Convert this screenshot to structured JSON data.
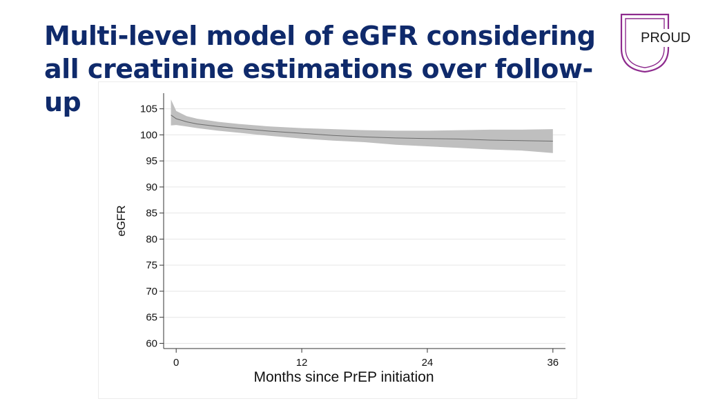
{
  "slide": {
    "title": "Multi-level model of eGFR considering all creatinine estimations over follow-up",
    "logo_text": "PROUD",
    "title_color": "#0f2a6b",
    "logo_color": "#8e2b8e"
  },
  "chart_data": {
    "type": "line",
    "title": "",
    "xlabel": "Months since PrEP initiation",
    "ylabel": "eGFR",
    "xlim": [
      -1.2,
      37.2
    ],
    "ylim": [
      59,
      108
    ],
    "xticks": [
      0,
      12,
      24,
      36
    ],
    "yticks": [
      60,
      65,
      70,
      75,
      80,
      85,
      90,
      95,
      100,
      105
    ],
    "grid": true,
    "series": [
      {
        "x": [
          -0.5,
          0,
          1,
          2,
          4,
          6,
          9,
          12,
          15,
          18,
          21,
          24,
          27,
          30,
          33,
          36
        ],
        "values": [
          103.8,
          103.1,
          102.5,
          102.1,
          101.6,
          101.2,
          100.7,
          100.3,
          99.9,
          99.6,
          99.4,
          99.3,
          99.2,
          99.0,
          98.9,
          98.8
        ],
        "ci_lower": [
          101.8,
          101.9,
          101.6,
          101.3,
          100.8,
          100.4,
          99.8,
          99.3,
          98.9,
          98.6,
          98.1,
          97.8,
          97.5,
          97.2,
          97.0,
          96.5
        ],
        "ci_upper": [
          106.8,
          104.6,
          103.6,
          103.1,
          102.5,
          102.1,
          101.6,
          101.3,
          101.1,
          100.9,
          100.8,
          100.8,
          100.9,
          101.0,
          101.0,
          101.1
        ]
      }
    ],
    "band_color": "#bfbfbf",
    "line_color": "#6b6b6b"
  }
}
